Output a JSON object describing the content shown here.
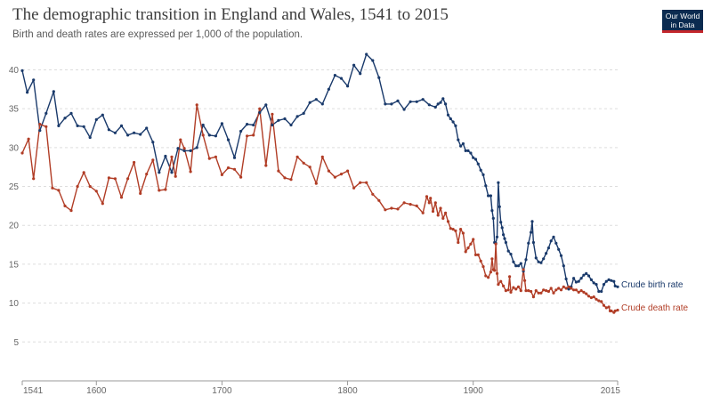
{
  "header": {
    "title": "The demographic transition in England and Wales, 1541 to 2015",
    "subtitle": "Birth and death rates are expressed per 1,000 of the population.",
    "logo_line1": "Our World",
    "logo_line2": "in Data"
  },
  "colors": {
    "birth": "#1a3a6b",
    "death": "#b13d26",
    "grid": "#dddddd",
    "axis": "#999999",
    "logo_bg": "#0b2b50",
    "logo_accent": "#c3262b"
  },
  "chart_data": {
    "type": "line",
    "title": "The demographic transition in England and Wales, 1541 to 2015",
    "subtitle": "Birth and death rates are expressed per 1,000 of the population.",
    "xlim": [
      1541,
      2015
    ],
    "ylim": [
      0,
      42
    ],
    "x_ticks": [
      1541,
      1600,
      1700,
      1800,
      1900,
      2015
    ],
    "y_ticks": [
      5,
      10,
      15,
      20,
      25,
      30,
      35,
      40
    ],
    "grid": "horizontal dashed",
    "series": [
      {
        "name": "Crude birth rate",
        "color": "#1a3a6b",
        "points": [
          [
            1541,
            39.9
          ],
          [
            1545,
            37.1
          ],
          [
            1550,
            38.7
          ],
          [
            1555,
            32.2
          ],
          [
            1560,
            34.4
          ],
          [
            1566,
            37.2
          ],
          [
            1570,
            32.8
          ],
          [
            1575,
            33.8
          ],
          [
            1580,
            34.4
          ],
          [
            1585,
            32.8
          ],
          [
            1590,
            32.7
          ],
          [
            1595,
            31.3
          ],
          [
            1600,
            33.6
          ],
          [
            1605,
            34.2
          ],
          [
            1610,
            32.3
          ],
          [
            1615,
            31.9
          ],
          [
            1620,
            32.8
          ],
          [
            1625,
            31.6
          ],
          [
            1630,
            31.9
          ],
          [
            1635,
            31.7
          ],
          [
            1640,
            32.5
          ],
          [
            1645,
            30.7
          ],
          [
            1650,
            26.8
          ],
          [
            1655,
            28.9
          ],
          [
            1660,
            26.8
          ],
          [
            1665,
            29.9
          ],
          [
            1670,
            29.6
          ],
          [
            1675,
            29.6
          ],
          [
            1680,
            30.0
          ],
          [
            1685,
            32.9
          ],
          [
            1690,
            31.6
          ],
          [
            1695,
            31.5
          ],
          [
            1700,
            33.1
          ],
          [
            1705,
            31.0
          ],
          [
            1710,
            28.7
          ],
          [
            1715,
            32.1
          ],
          [
            1720,
            33.0
          ],
          [
            1725,
            32.9
          ],
          [
            1730,
            34.5
          ],
          [
            1735,
            35.5
          ],
          [
            1740,
            32.9
          ],
          [
            1745,
            33.5
          ],
          [
            1750,
            33.7
          ],
          [
            1755,
            32.9
          ],
          [
            1760,
            34.0
          ],
          [
            1765,
            34.4
          ],
          [
            1770,
            35.8
          ],
          [
            1775,
            36.2
          ],
          [
            1780,
            35.6
          ],
          [
            1785,
            37.5
          ],
          [
            1790,
            39.3
          ],
          [
            1795,
            38.9
          ],
          [
            1800,
            37.9
          ],
          [
            1805,
            40.6
          ],
          [
            1810,
            39.5
          ],
          [
            1815,
            42.0
          ],
          [
            1820,
            41.2
          ],
          [
            1825,
            39.0
          ],
          [
            1830,
            35.6
          ],
          [
            1835,
            35.6
          ],
          [
            1840,
            36.0
          ],
          [
            1845,
            34.9
          ],
          [
            1850,
            35.9
          ],
          [
            1855,
            35.9
          ],
          [
            1860,
            36.2
          ],
          [
            1865,
            35.5
          ],
          [
            1870,
            35.2
          ],
          [
            1872,
            35.6
          ],
          [
            1874,
            35.8
          ],
          [
            1876,
            36.3
          ],
          [
            1878,
            35.6
          ],
          [
            1880,
            34.2
          ],
          [
            1882,
            33.7
          ],
          [
            1884,
            33.3
          ],
          [
            1886,
            32.8
          ],
          [
            1888,
            31.0
          ],
          [
            1890,
            30.2
          ],
          [
            1892,
            30.5
          ],
          [
            1894,
            29.6
          ],
          [
            1896,
            29.6
          ],
          [
            1898,
            29.3
          ],
          [
            1900,
            28.7
          ],
          [
            1902,
            28.5
          ],
          [
            1904,
            27.9
          ],
          [
            1906,
            27.1
          ],
          [
            1908,
            26.5
          ],
          [
            1910,
            25.1
          ],
          [
            1912,
            23.8
          ],
          [
            1914,
            23.8
          ],
          [
            1915,
            21.9
          ],
          [
            1916,
            20.9
          ],
          [
            1917,
            17.8
          ],
          [
            1918,
            17.7
          ],
          [
            1919,
            18.5
          ],
          [
            1920,
            25.5
          ],
          [
            1921,
            22.4
          ],
          [
            1922,
            20.4
          ],
          [
            1923,
            19.7
          ],
          [
            1924,
            18.8
          ],
          [
            1925,
            18.3
          ],
          [
            1926,
            17.8
          ],
          [
            1928,
            16.7
          ],
          [
            1930,
            16.3
          ],
          [
            1932,
            15.3
          ],
          [
            1934,
            14.8
          ],
          [
            1936,
            14.8
          ],
          [
            1938,
            15.1
          ],
          [
            1940,
            14.1
          ],
          [
            1942,
            15.6
          ],
          [
            1944,
            17.7
          ],
          [
            1946,
            19.1
          ],
          [
            1947,
            20.5
          ],
          [
            1948,
            17.8
          ],
          [
            1950,
            15.8
          ],
          [
            1952,
            15.3
          ],
          [
            1954,
            15.2
          ],
          [
            1956,
            15.7
          ],
          [
            1958,
            16.4
          ],
          [
            1960,
            17.1
          ],
          [
            1962,
            18.0
          ],
          [
            1964,
            18.5
          ],
          [
            1966,
            17.7
          ],
          [
            1968,
            16.9
          ],
          [
            1970,
            16.1
          ],
          [
            1972,
            14.8
          ],
          [
            1974,
            13.1
          ],
          [
            1976,
            11.8
          ],
          [
            1978,
            12.1
          ],
          [
            1980,
            13.2
          ],
          [
            1982,
            12.7
          ],
          [
            1984,
            12.8
          ],
          [
            1986,
            13.2
          ],
          [
            1988,
            13.6
          ],
          [
            1990,
            13.8
          ],
          [
            1992,
            13.5
          ],
          [
            1994,
            13.0
          ],
          [
            1996,
            12.6
          ],
          [
            1998,
            12.4
          ],
          [
            2000,
            11.5
          ],
          [
            2002,
            11.5
          ],
          [
            2004,
            12.4
          ],
          [
            2006,
            12.8
          ],
          [
            2008,
            13.0
          ],
          [
            2010,
            12.9
          ],
          [
            2012,
            12.8
          ],
          [
            2013,
            12.2
          ],
          [
            2015,
            12.1
          ]
        ]
      },
      {
        "name": "Crude death rate",
        "color": "#b13d26",
        "points": [
          [
            1541,
            29.3
          ],
          [
            1546,
            31.1
          ],
          [
            1550,
            26.0
          ],
          [
            1555,
            33.0
          ],
          [
            1560,
            32.7
          ],
          [
            1565,
            24.8
          ],
          [
            1570,
            24.5
          ],
          [
            1575,
            22.5
          ],
          [
            1580,
            21.9
          ],
          [
            1585,
            25.0
          ],
          [
            1590,
            26.8
          ],
          [
            1595,
            25.0
          ],
          [
            1600,
            24.4
          ],
          [
            1605,
            22.8
          ],
          [
            1610,
            26.1
          ],
          [
            1615,
            26.0
          ],
          [
            1620,
            23.6
          ],
          [
            1625,
            26.0
          ],
          [
            1630,
            28.1
          ],
          [
            1635,
            24.1
          ],
          [
            1640,
            26.6
          ],
          [
            1645,
            28.4
          ],
          [
            1650,
            24.5
          ],
          [
            1655,
            24.6
          ],
          [
            1660,
            28.8
          ],
          [
            1663,
            26.3
          ],
          [
            1667,
            31.0
          ],
          [
            1670,
            29.9
          ],
          [
            1675,
            26.9
          ],
          [
            1680,
            35.5
          ],
          [
            1685,
            31.6
          ],
          [
            1690,
            28.6
          ],
          [
            1695,
            28.8
          ],
          [
            1700,
            26.5
          ],
          [
            1705,
            27.4
          ],
          [
            1710,
            27.2
          ],
          [
            1715,
            26.2
          ],
          [
            1720,
            31.5
          ],
          [
            1725,
            31.6
          ],
          [
            1730,
            35.0
          ],
          [
            1735,
            27.7
          ],
          [
            1740,
            34.3
          ],
          [
            1745,
            27.0
          ],
          [
            1750,
            26.1
          ],
          [
            1755,
            25.9
          ],
          [
            1760,
            28.8
          ],
          [
            1765,
            28.0
          ],
          [
            1770,
            27.5
          ],
          [
            1775,
            25.4
          ],
          [
            1780,
            28.8
          ],
          [
            1785,
            27.0
          ],
          [
            1790,
            26.2
          ],
          [
            1795,
            26.6
          ],
          [
            1800,
            27.0
          ],
          [
            1805,
            24.8
          ],
          [
            1810,
            25.5
          ],
          [
            1815,
            25.5
          ],
          [
            1820,
            24.0
          ],
          [
            1825,
            23.2
          ],
          [
            1830,
            22.0
          ],
          [
            1835,
            22.2
          ],
          [
            1840,
            22.1
          ],
          [
            1845,
            22.9
          ],
          [
            1850,
            22.7
          ],
          [
            1855,
            22.5
          ],
          [
            1860,
            21.6
          ],
          [
            1863,
            23.7
          ],
          [
            1865,
            22.9
          ],
          [
            1866,
            23.5
          ],
          [
            1868,
            21.8
          ],
          [
            1870,
            22.9
          ],
          [
            1872,
            21.3
          ],
          [
            1874,
            22.2
          ],
          [
            1876,
            20.9
          ],
          [
            1878,
            21.6
          ],
          [
            1880,
            20.5
          ],
          [
            1882,
            19.6
          ],
          [
            1884,
            19.5
          ],
          [
            1886,
            19.3
          ],
          [
            1888,
            17.8
          ],
          [
            1890,
            19.5
          ],
          [
            1892,
            19.0
          ],
          [
            1894,
            16.6
          ],
          [
            1896,
            17.1
          ],
          [
            1898,
            17.6
          ],
          [
            1900,
            18.2
          ],
          [
            1902,
            16.2
          ],
          [
            1904,
            16.2
          ],
          [
            1906,
            15.4
          ],
          [
            1908,
            14.7
          ],
          [
            1910,
            13.5
          ],
          [
            1912,
            13.3
          ],
          [
            1914,
            14.0
          ],
          [
            1915,
            15.7
          ],
          [
            1916,
            14.3
          ],
          [
            1917,
            14.2
          ],
          [
            1918,
            17.6
          ],
          [
            1919,
            13.8
          ],
          [
            1920,
            12.4
          ],
          [
            1922,
            12.8
          ],
          [
            1924,
            12.2
          ],
          [
            1926,
            11.6
          ],
          [
            1928,
            11.7
          ],
          [
            1929,
            13.4
          ],
          [
            1930,
            11.4
          ],
          [
            1932,
            12.0
          ],
          [
            1934,
            11.8
          ],
          [
            1936,
            12.1
          ],
          [
            1938,
            11.6
          ],
          [
            1940,
            14.3
          ],
          [
            1941,
            12.9
          ],
          [
            1942,
            11.6
          ],
          [
            1944,
            11.6
          ],
          [
            1946,
            11.5
          ],
          [
            1948,
            10.8
          ],
          [
            1950,
            11.6
          ],
          [
            1952,
            11.3
          ],
          [
            1954,
            11.3
          ],
          [
            1956,
            11.7
          ],
          [
            1958,
            11.6
          ],
          [
            1960,
            11.5
          ],
          [
            1962,
            11.9
          ],
          [
            1964,
            11.3
          ],
          [
            1966,
            11.7
          ],
          [
            1968,
            11.9
          ],
          [
            1970,
            11.7
          ],
          [
            1972,
            12.1
          ],
          [
            1974,
            11.9
          ],
          [
            1976,
            12.1
          ],
          [
            1978,
            11.9
          ],
          [
            1980,
            11.7
          ],
          [
            1982,
            11.7
          ],
          [
            1984,
            11.4
          ],
          [
            1986,
            11.6
          ],
          [
            1988,
            11.4
          ],
          [
            1990,
            11.2
          ],
          [
            1992,
            10.9
          ],
          [
            1994,
            10.7
          ],
          [
            1996,
            10.8
          ],
          [
            1998,
            10.5
          ],
          [
            2000,
            10.3
          ],
          [
            2002,
            10.2
          ],
          [
            2004,
            9.7
          ],
          [
            2006,
            9.4
          ],
          [
            2008,
            9.5
          ],
          [
            2009,
            9.0
          ],
          [
            2010,
            9.0
          ],
          [
            2012,
            8.8
          ],
          [
            2013,
            9.0
          ],
          [
            2015,
            9.1
          ]
        ]
      }
    ]
  }
}
